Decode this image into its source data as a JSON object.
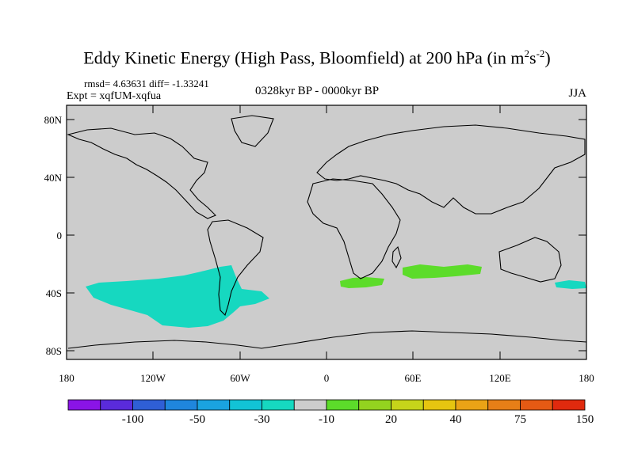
{
  "title": {
    "text": "Eddy Kinetic Energy (High Pass, Bloomfield) at 200 hPa (in m",
    "unit_base_s": "s",
    "sup1": "2",
    "sup2": "-2",
    "close": ")"
  },
  "stats": "rmsd= 4.63631 diff= -1.33241",
  "experiment": "Expt = xqfUM-xqfua",
  "period": "0328kyr BP - 0000kyr BP",
  "season": "JJA",
  "axes": {
    "y_ticks": [
      "80N",
      "40N",
      "0",
      "40S",
      "80S"
    ],
    "x_ticks": [
      "180",
      "120W",
      "60W",
      "0",
      "60E",
      "120E",
      "180"
    ]
  },
  "colorbar": {
    "colors": [
      "#8a14e6",
      "#5a2bdb",
      "#2f5fd6",
      "#1f86dd",
      "#1aa3e0",
      "#12c3d6",
      "#16d8c0",
      "#cccccc",
      "#5cdc2a",
      "#93d31f",
      "#c6d41a",
      "#e6c510",
      "#eaa316",
      "#e77f17",
      "#e55a14",
      "#e02a0e"
    ],
    "labels": [
      "-100",
      "-50",
      "-30",
      "-10",
      "20",
      "40",
      "75",
      "150"
    ]
  },
  "colors": {
    "land_sea_background": "#cccccc",
    "negative_anomaly": "#16d8c0",
    "positive_anomaly": "#5cdc2a"
  }
}
